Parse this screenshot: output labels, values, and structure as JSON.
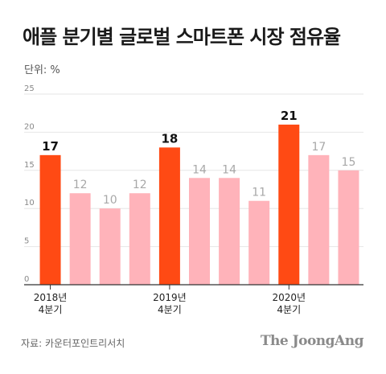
{
  "title": "애플 분기별 글로벌 스마트폰 시장 점유율",
  "unit_label": "단위: %",
  "source": "자료: 카운터포인트리서치",
  "brand": "The JoongAng",
  "colors": {
    "highlight": "#ff4a14",
    "normal": "#ffb3ba",
    "gridline": "#e6e6e6",
    "axis": "#333333",
    "tick": "#888888"
  },
  "chart_data": {
    "type": "bar",
    "categories": [
      "2018년 4분기",
      "",
      "",
      "",
      "2019년 4분기",
      "",
      "",
      "",
      "2020년 4분기",
      "",
      ""
    ],
    "values": [
      17,
      12,
      10,
      12,
      18,
      14,
      14,
      11,
      21,
      17,
      15
    ],
    "highlight": [
      true,
      false,
      false,
      false,
      true,
      false,
      false,
      false,
      true,
      false,
      false
    ],
    "ylim": [
      0,
      25
    ],
    "yticks": [
      0,
      5,
      10,
      15,
      20,
      25
    ],
    "grid": true
  }
}
